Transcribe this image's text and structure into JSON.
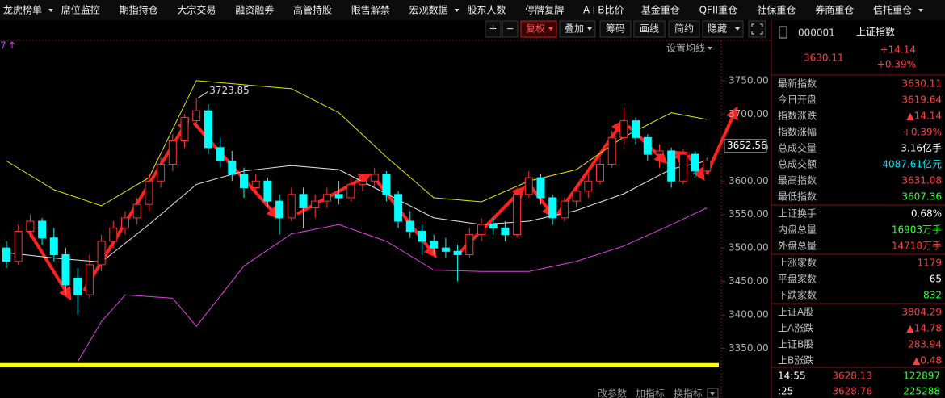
{
  "menu": [
    "龙虎榜单",
    "席位监控",
    "期指持仓",
    "大宗交易",
    "融资融券",
    "高管持股",
    "限售解禁",
    "宏观数据",
    "股东人数",
    "停牌复牌",
    "A+B比价",
    "基金重仓",
    "QFII重仓",
    "社保重仓",
    "券商重仓",
    "信托重仓"
  ],
  "toolbar": [
    "+",
    "−",
    "复权",
    "叠加",
    "筹码",
    "画线",
    "简约",
    "隐藏"
  ],
  "chart": {
    "type": "candlestick",
    "marker": "7",
    "ma_setting": "设置均线",
    "ylim": [
      3300,
      3780
    ],
    "yticks": [
      {
        "value": 3750,
        "label": "3750.00"
      },
      {
        "value": 3700,
        "label": "3700.00"
      },
      {
        "value": 3650,
        "label": "3650.00"
      },
      {
        "value": 3600,
        "label": "3600.00"
      },
      {
        "value": 3550,
        "label": "3550.00"
      },
      {
        "value": 3500,
        "label": "3500.00"
      },
      {
        "value": 3450,
        "label": "3450.00"
      },
      {
        "value": 3400,
        "label": "3400.00"
      },
      {
        "value": 3350,
        "label": "3350.00"
      }
    ],
    "last_price": 3652.56,
    "up_color": "#ff3232",
    "down_color": "#00ffff",
    "candles": [
      [
        3500,
        3510,
        3470,
        3480
      ],
      [
        3480,
        3535,
        3475,
        3525
      ],
      [
        3525,
        3550,
        3515,
        3540
      ],
      [
        3540,
        3545,
        3505,
        3515
      ],
      [
        3515,
        3530,
        3480,
        3490
      ],
      [
        3490,
        3500,
        3430,
        3445
      ],
      [
        3455,
        3470,
        3400,
        3430
      ],
      [
        3430,
        3490,
        3425,
        3475
      ],
      [
        3475,
        3520,
        3465,
        3510
      ],
      [
        3510,
        3540,
        3500,
        3530
      ],
      [
        3530,
        3555,
        3520,
        3545
      ],
      [
        3545,
        3575,
        3535,
        3565
      ],
      [
        3565,
        3610,
        3555,
        3600
      ],
      [
        3600,
        3635,
        3590,
        3625
      ],
      [
        3625,
        3670,
        3615,
        3660
      ],
      [
        3660,
        3700,
        3650,
        3695
      ],
      [
        3690,
        3723.85,
        3680,
        3705
      ],
      [
        3705,
        3715,
        3640,
        3650
      ],
      [
        3650,
        3665,
        3620,
        3630
      ],
      [
        3630,
        3645,
        3600,
        3610
      ],
      [
        3610,
        3620,
        3575,
        3590
      ],
      [
        3590,
        3610,
        3580,
        3600
      ],
      [
        3600,
        3605,
        3560,
        3570
      ],
      [
        3570,
        3580,
        3520,
        3545
      ],
      [
        3545,
        3590,
        3540,
        3580
      ],
      [
        3580,
        3590,
        3530,
        3560
      ],
      [
        3560,
        3580,
        3545,
        3570
      ],
      [
        3570,
        3590,
        3560,
        3580
      ],
      [
        3580,
        3600,
        3565,
        3575
      ],
      [
        3575,
        3605,
        3570,
        3595
      ],
      [
        3595,
        3610,
        3585,
        3600
      ],
      [
        3600,
        3620,
        3590,
        3610
      ],
      [
        3610,
        3615,
        3570,
        3580
      ],
      [
        3580,
        3585,
        3530,
        3540
      ],
      [
        3540,
        3555,
        3515,
        3525
      ],
      [
        3525,
        3535,
        3490,
        3510
      ],
      [
        3510,
        3520,
        3490,
        3500
      ],
      [
        3500,
        3515,
        3485,
        3495
      ],
      [
        3495,
        3505,
        3450,
        3490
      ],
      [
        3490,
        3530,
        3485,
        3520
      ],
      [
        3520,
        3545,
        3510,
        3535
      ],
      [
        3535,
        3545,
        3520,
        3530
      ],
      [
        3530,
        3540,
        3510,
        3520
      ],
      [
        3520,
        3590,
        3515,
        3580
      ],
      [
        3580,
        3615,
        3575,
        3605
      ],
      [
        3605,
        3610,
        3565,
        3575
      ],
      [
        3575,
        3580,
        3535,
        3545
      ],
      [
        3545,
        3575,
        3540,
        3570
      ],
      [
        3570,
        3595,
        3560,
        3585
      ],
      [
        3585,
        3610,
        3575,
        3600
      ],
      [
        3600,
        3635,
        3595,
        3625
      ],
      [
        3625,
        3675,
        3620,
        3665
      ],
      [
        3665,
        3710,
        3655,
        3690
      ],
      [
        3690,
        3695,
        3655,
        3665
      ],
      [
        3665,
        3670,
        3630,
        3640
      ],
      [
        3640,
        3655,
        3620,
        3645
      ],
      [
        3645,
        3650,
        3590,
        3600
      ],
      [
        3600,
        3648,
        3595,
        3640
      ],
      [
        3640,
        3645,
        3605,
        3615
      ],
      [
        3615,
        3635,
        3610,
        3630
      ]
    ],
    "upper": {
      "color": "#e6e600",
      "x": [
        0,
        4,
        8,
        12,
        16,
        20,
        24,
        28,
        32,
        36,
        40,
        44,
        48,
        52,
        56,
        59
      ],
      "values": [
        3630,
        3587,
        3563,
        3605,
        3750,
        3744,
        3738,
        3702,
        3636,
        3575,
        3569,
        3600,
        3617,
        3666,
        3702,
        3692
      ]
    },
    "middle": {
      "color": "#e8e8e8",
      "x": [
        0,
        4,
        8,
        12,
        16,
        20,
        24,
        28,
        32,
        36,
        40,
        44,
        48,
        52,
        56,
        59
      ],
      "values": [
        3493,
        3485,
        3479,
        3535,
        3595,
        3615,
        3623,
        3617,
        3581,
        3545,
        3535,
        3540,
        3556,
        3581,
        3618,
        3630
      ]
    },
    "lower": {
      "color": "#e040e0",
      "x": [
        6,
        8,
        10,
        14,
        16,
        20,
        24,
        28,
        32,
        36,
        40,
        44,
        48,
        52,
        56,
        59
      ],
      "values": [
        3330,
        3390,
        3430,
        3425,
        3383,
        3473,
        3521,
        3535,
        3510,
        3467,
        3465,
        3465,
        3480,
        3503,
        3535,
        3560
      ]
    },
    "hline": {
      "value": 3325,
      "color": "#ffff00"
    },
    "bottom_buttons": [
      "改参数",
      "加指标",
      "换指标"
    ]
  },
  "quote": {
    "code": "000001",
    "name": "上证指数",
    "price": "3630.11",
    "change": "+14.14",
    "pct": "+0.39%",
    "rows": [
      {
        "label": "最新指数",
        "value": "3630.11",
        "color": "#ff4040"
      },
      {
        "label": "今日开盘",
        "value": "3619.64",
        "color": "#ff4040"
      },
      {
        "label": "指数涨跌",
        "value": "▲14.14",
        "color": "#ff4040"
      },
      {
        "label": "指数涨幅",
        "value": "+0.39%",
        "color": "#ff4040"
      },
      {
        "label": "总成交量",
        "value": "3.16亿手",
        "color": "#ffffff"
      },
      {
        "label": "总成交额",
        "value": "4087.61亿元",
        "color": "#00e5ff"
      },
      {
        "label": "最高指数",
        "value": "3631.08",
        "color": "#ff4040"
      },
      {
        "label": "最低指数",
        "value": "3607.36",
        "color": "#33ff33"
      },
      {
        "label": "上证换手",
        "value": "0.68%",
        "color": "#ffffff"
      },
      {
        "label": "内盘总量",
        "value": "16903万手",
        "color": "#33ff33"
      },
      {
        "label": "外盘总量",
        "value": "14718万手",
        "color": "#ff4040"
      },
      {
        "label": "上涨家数",
        "value": "1179",
        "color": "#ff4040"
      },
      {
        "label": "平盘家数",
        "value": "65",
        "color": "#ffffff"
      },
      {
        "label": "下跌家数",
        "value": "832",
        "color": "#33ff33"
      },
      {
        "label": "上证A股",
        "value": "3804.29",
        "color": "#ff4040"
      },
      {
        "label": "上A涨跌",
        "value": "▲14.78",
        "color": "#ff4040"
      },
      {
        "label": "上证B股",
        "value": "283.94",
        "color": "#ff4040"
      },
      {
        "label": "上B涨跌",
        "value": "▲0.48",
        "color": "#ff4040"
      }
    ],
    "trades": [
      {
        "time": "14:55",
        "price": "3628.13",
        "volume": "122897",
        "color": "#33ff33"
      },
      {
        "time": ":25",
        "price": "3628.76",
        "volume": "225288",
        "color": "#33ff33"
      }
    ]
  }
}
